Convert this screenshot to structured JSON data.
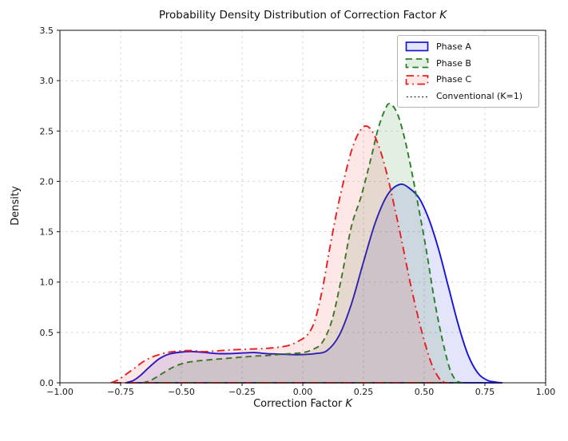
{
  "figure": {
    "title_prefix": "Probability Density Distribution of Correction Factor ",
    "title_italic": "K",
    "xlabel_prefix": "Correction Factor ",
    "xlabel_italic": "K",
    "ylabel": "Density"
  },
  "axes_style": {
    "spine_color": "#262626",
    "grid_color": "#cfcfcf",
    "tick_color": "#262626",
    "tick_label_color": "#1a1a1a",
    "plot_background": "#ffffff"
  },
  "chart_data": {
    "type": "area",
    "title": "Probability Density Distribution of Correction Factor K",
    "xlabel": "Correction Factor K",
    "ylabel": "Density",
    "xlim": [
      -1.0,
      1.0
    ],
    "ylim": [
      0,
      3.5
    ],
    "grid": true,
    "legend_position": "upper right",
    "xticks": [
      -1.0,
      -0.75,
      -0.5,
      -0.25,
      0.0,
      0.25,
      0.5,
      0.75,
      1.0
    ],
    "xtick_labels": [
      "−1.00",
      "−0.75",
      "−0.50",
      "−0.25",
      "0.00",
      "0.25",
      "0.50",
      "0.75",
      "1.00"
    ],
    "yticks": [
      0.0,
      0.5,
      1.0,
      1.5,
      2.0,
      2.5,
      3.0,
      3.5
    ],
    "ytick_labels": [
      "0.0",
      "0.5",
      "1.0",
      "1.5",
      "2.0",
      "2.5",
      "3.0",
      "3.5"
    ],
    "series": [
      {
        "name": "Phase A",
        "style": "solid",
        "color": "#1515d2",
        "fill": "rgba(45,45,215,0.13)",
        "peak": {
          "x": 0.4,
          "density": 1.97
        },
        "points": [
          [
            -0.73,
            0.0
          ],
          [
            -0.7,
            0.02
          ],
          [
            -0.67,
            0.07
          ],
          [
            -0.63,
            0.16
          ],
          [
            -0.59,
            0.24
          ],
          [
            -0.55,
            0.285
          ],
          [
            -0.5,
            0.305
          ],
          [
            -0.45,
            0.31
          ],
          [
            -0.4,
            0.3
          ],
          [
            -0.35,
            0.29
          ],
          [
            -0.3,
            0.29
          ],
          [
            -0.25,
            0.295
          ],
          [
            -0.2,
            0.3
          ],
          [
            -0.15,
            0.29
          ],
          [
            -0.1,
            0.285
          ],
          [
            -0.05,
            0.28
          ],
          [
            0.0,
            0.28
          ],
          [
            0.05,
            0.29
          ],
          [
            0.1,
            0.32
          ],
          [
            0.15,
            0.47
          ],
          [
            0.2,
            0.78
          ],
          [
            0.25,
            1.2
          ],
          [
            0.3,
            1.6
          ],
          [
            0.35,
            1.87
          ],
          [
            0.4,
            1.97
          ],
          [
            0.44,
            1.93
          ],
          [
            0.48,
            1.83
          ],
          [
            0.52,
            1.62
          ],
          [
            0.56,
            1.32
          ],
          [
            0.6,
            0.95
          ],
          [
            0.64,
            0.58
          ],
          [
            0.68,
            0.28
          ],
          [
            0.72,
            0.1
          ],
          [
            0.76,
            0.025
          ],
          [
            0.8,
            0.005
          ],
          [
            0.82,
            0.0
          ]
        ]
      },
      {
        "name": "Phase B",
        "style": "dashed",
        "color": "#268026",
        "fill": "rgba(45,135,45,0.13)",
        "peak": {
          "x": 0.36,
          "density": 2.77
        },
        "points": [
          [
            -0.66,
            0.0
          ],
          [
            -0.63,
            0.02
          ],
          [
            -0.6,
            0.06
          ],
          [
            -0.56,
            0.12
          ],
          [
            -0.52,
            0.17
          ],
          [
            -0.48,
            0.2
          ],
          [
            -0.44,
            0.215
          ],
          [
            -0.4,
            0.225
          ],
          [
            -0.35,
            0.235
          ],
          [
            -0.3,
            0.245
          ],
          [
            -0.25,
            0.255
          ],
          [
            -0.2,
            0.265
          ],
          [
            -0.15,
            0.27
          ],
          [
            -0.1,
            0.28
          ],
          [
            -0.05,
            0.29
          ],
          [
            0.0,
            0.3
          ],
          [
            0.04,
            0.33
          ],
          [
            0.08,
            0.4
          ],
          [
            0.12,
            0.62
          ],
          [
            0.16,
            1.05
          ],
          [
            0.2,
            1.55
          ],
          [
            0.24,
            1.85
          ],
          [
            0.28,
            2.22
          ],
          [
            0.31,
            2.52
          ],
          [
            0.34,
            2.72
          ],
          [
            0.36,
            2.77
          ],
          [
            0.39,
            2.67
          ],
          [
            0.42,
            2.42
          ],
          [
            0.45,
            2.08
          ],
          [
            0.48,
            1.7
          ],
          [
            0.51,
            1.3
          ],
          [
            0.54,
            0.85
          ],
          [
            0.57,
            0.48
          ],
          [
            0.6,
            0.18
          ],
          [
            0.62,
            0.06
          ],
          [
            0.64,
            0.01
          ],
          [
            0.66,
            0.0
          ]
        ]
      },
      {
        "name": "Phase C",
        "style": "dashdot",
        "color": "#e81e1e",
        "fill": "rgba(235,35,40,0.11)",
        "peak": {
          "x": 0.26,
          "density": 2.55
        },
        "points": [
          [
            -0.79,
            0.0
          ],
          [
            -0.76,
            0.03
          ],
          [
            -0.73,
            0.08
          ],
          [
            -0.69,
            0.15
          ],
          [
            -0.65,
            0.22
          ],
          [
            -0.61,
            0.265
          ],
          [
            -0.56,
            0.3
          ],
          [
            -0.51,
            0.315
          ],
          [
            -0.46,
            0.32
          ],
          [
            -0.41,
            0.31
          ],
          [
            -0.36,
            0.315
          ],
          [
            -0.31,
            0.325
          ],
          [
            -0.26,
            0.33
          ],
          [
            -0.21,
            0.335
          ],
          [
            -0.16,
            0.34
          ],
          [
            -0.11,
            0.35
          ],
          [
            -0.06,
            0.37
          ],
          [
            -0.02,
            0.41
          ],
          [
            0.02,
            0.48
          ],
          [
            0.05,
            0.62
          ],
          [
            0.08,
            0.92
          ],
          [
            0.11,
            1.32
          ],
          [
            0.14,
            1.7
          ],
          [
            0.17,
            2.02
          ],
          [
            0.2,
            2.3
          ],
          [
            0.23,
            2.48
          ],
          [
            0.26,
            2.55
          ],
          [
            0.29,
            2.48
          ],
          [
            0.32,
            2.3
          ],
          [
            0.35,
            2.04
          ],
          [
            0.38,
            1.72
          ],
          [
            0.41,
            1.38
          ],
          [
            0.44,
            1.02
          ],
          [
            0.47,
            0.7
          ],
          [
            0.5,
            0.42
          ],
          [
            0.53,
            0.19
          ],
          [
            0.56,
            0.05
          ],
          [
            0.58,
            0.01
          ],
          [
            0.6,
            0.0
          ]
        ]
      },
      {
        "name": "Conventional (K=1)",
        "style": "dotted",
        "color": "#1a1a1a",
        "vline_x": 1.0
      }
    ]
  }
}
